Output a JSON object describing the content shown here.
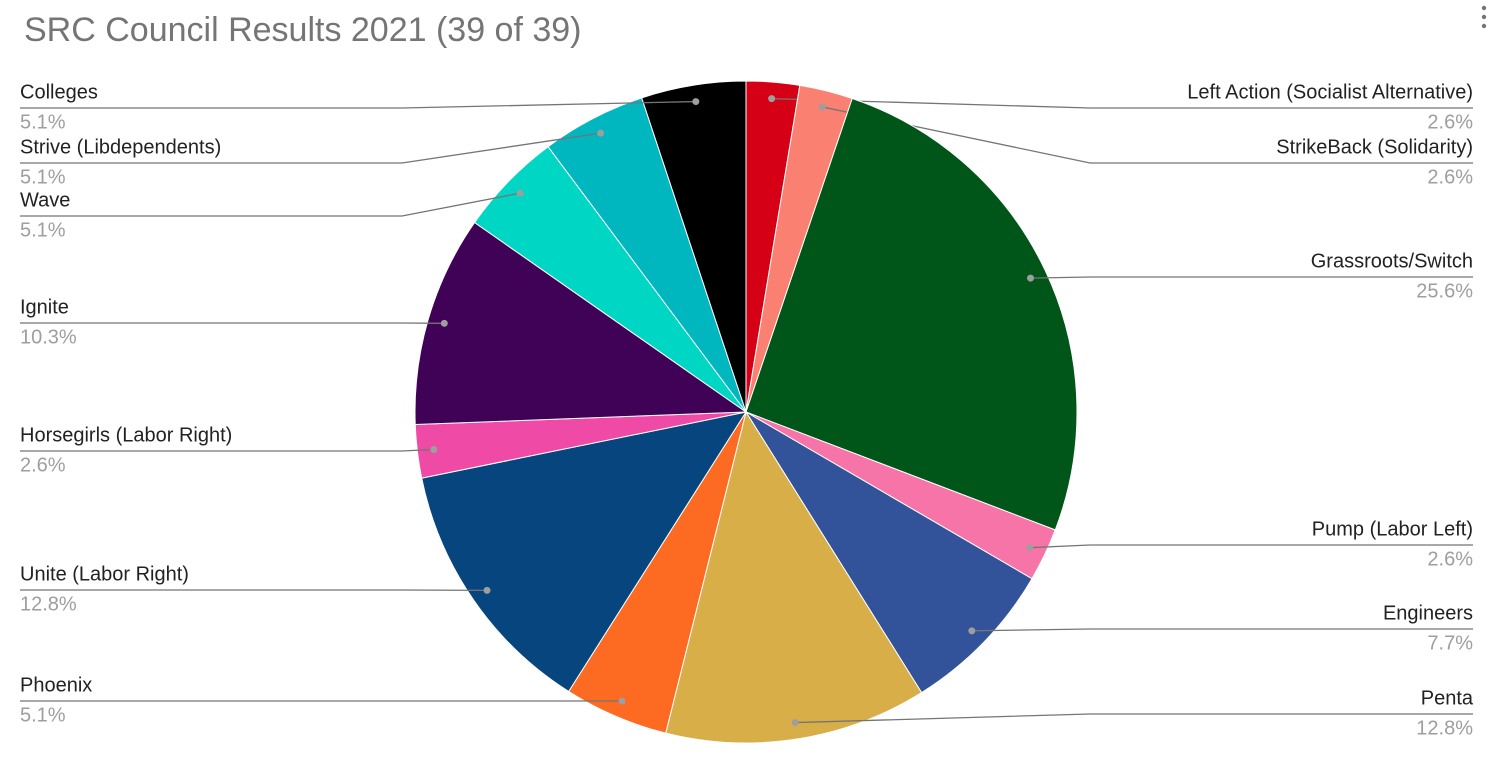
{
  "chart_data": {
    "type": "pie",
    "title": "SRC Council Results 2021 (39 of 39)",
    "categories": [
      "Left Action (Socialist Alternative)",
      "StrikeBack (Solidarity)",
      "Grassroots/Switch",
      "Pump (Labor Left)",
      "Engineers",
      "Penta",
      "Phoenix",
      "Unite (Labor Right)",
      "Horsegirls (Labor Right)",
      "Ignite",
      "Wave",
      "Strive (Libdependents)",
      "Colleges"
    ],
    "values": [
      2.6,
      2.6,
      25.6,
      2.6,
      7.7,
      12.8,
      5.1,
      12.8,
      2.6,
      10.3,
      5.1,
      5.1,
      5.1
    ],
    "value_labels": [
      "2.6%",
      "2.6%",
      "25.6%",
      "2.6%",
      "7.7%",
      "12.8%",
      "5.1%",
      "12.8%",
      "2.6%",
      "10.3%",
      "5.1%",
      "5.1%",
      "5.1%"
    ],
    "colors": [
      "#d50016",
      "#fa8072",
      "#005518",
      "#f774a8",
      "#32529a",
      "#d8ae48",
      "#fd6a21",
      "#07457e",
      "#ef4aa6",
      "#400257",
      "#00d6c4",
      "#00b7bf",
      "#000000"
    ]
  }
}
